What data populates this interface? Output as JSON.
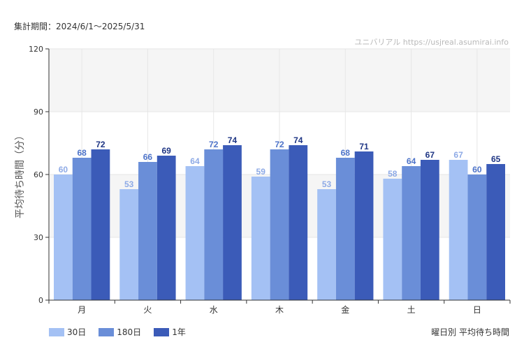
{
  "header": {
    "period": "集計期間：2024/6/1～2025/5/31",
    "watermark": "ユニバリアル  https://usjreal.asumirai.info"
  },
  "footer": {
    "caption": "曜日別 平均待ち時間"
  },
  "chart_data": {
    "type": "bar",
    "categories": [
      "月",
      "火",
      "水",
      "木",
      "金",
      "土",
      "日"
    ],
    "series": [
      {
        "name": "30日",
        "values": [
          60,
          53,
          64,
          59,
          53,
          58,
          67
        ],
        "color": "#a4c1f4",
        "label_color": "#8eaae6"
      },
      {
        "name": "180日",
        "values": [
          68,
          66,
          72,
          72,
          68,
          64,
          60
        ],
        "color": "#6a8ed8",
        "label_color": "#4d73c9"
      },
      {
        "name": "1年",
        "values": [
          72,
          69,
          74,
          74,
          71,
          67,
          65
        ],
        "color": "#3b5bb8",
        "label_color": "#1e3584"
      }
    ],
    "ylabel": "平均待ち時間（分）",
    "xlabel": "",
    "ylim": [
      0,
      120
    ],
    "yticks": [
      0,
      30,
      60,
      90,
      120
    ],
    "grid": true,
    "band_colors": [
      "#f5f5f5",
      "#ffffff"
    ],
    "legend_position": "bottom-left"
  }
}
